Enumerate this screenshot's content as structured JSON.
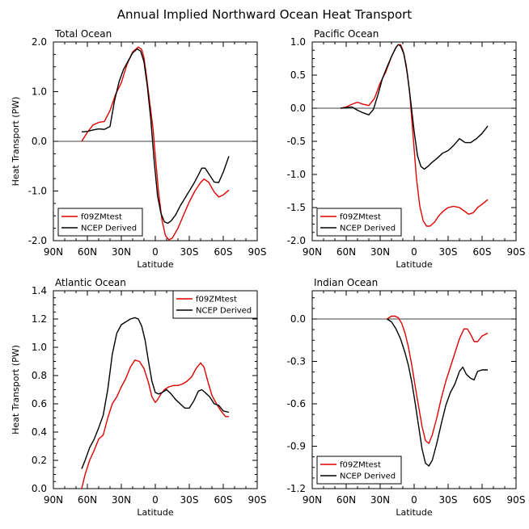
{
  "figure": {
    "title": "Annual Implied Northward Ocean Heat Transport"
  },
  "chart_data": [
    {
      "type": "line",
      "title": "Total Ocean",
      "xlabel": "Latitude",
      "ylabel": "Heat Transport (PW)",
      "xlim": [
        90,
        -90
      ],
      "ylim": [
        -2.0,
        2.0
      ],
      "x_ticks": [
        90,
        60,
        30,
        0,
        -30,
        -60,
        -90
      ],
      "x_tick_labels": [
        "90N",
        "60N",
        "30N",
        "0",
        "30S",
        "60S",
        "90S"
      ],
      "y_ticks": [
        -2.0,
        -1.0,
        0.0,
        1.0,
        2.0
      ],
      "y_tick_labels": [
        "-2.0",
        "-1.0",
        "0.0",
        "1.0",
        "2.0"
      ],
      "legend_position": "bottom-left",
      "series": [
        {
          "name": "f09ZMtest",
          "color": "#e00000",
          "x": [
            65,
            60,
            55,
            50,
            45,
            40,
            35,
            30,
            25,
            20,
            15,
            12,
            10,
            8,
            5,
            2,
            0,
            -3,
            -6,
            -9,
            -12,
            -15,
            -20,
            -25,
            -30,
            -35,
            -40,
            -43,
            -47,
            -52,
            -56,
            -60,
            -65
          ],
          "y": [
            0.0,
            0.18,
            0.33,
            0.38,
            0.4,
            0.62,
            0.95,
            1.18,
            1.55,
            1.8,
            1.9,
            1.85,
            1.68,
            1.35,
            0.8,
            0.25,
            -0.3,
            -1.05,
            -1.6,
            -1.9,
            -1.98,
            -1.95,
            -1.75,
            -1.48,
            -1.22,
            -1.0,
            -0.83,
            -0.76,
            -0.82,
            -1.02,
            -1.12,
            -1.08,
            -0.98
          ]
        },
        {
          "name": "NCEP Derived",
          "color": "#000000",
          "x": [
            65,
            60,
            55,
            50,
            45,
            40,
            36,
            32,
            28,
            24,
            20,
            16,
            13,
            10,
            7,
            4,
            1,
            -2,
            -5,
            -8,
            -11,
            -14,
            -18,
            -22,
            -26,
            -30,
            -34,
            -38,
            -41,
            -44,
            -48,
            -52,
            -56,
            -60,
            -65
          ],
          "y": [
            0.19,
            0.2,
            0.23,
            0.25,
            0.24,
            0.3,
            0.82,
            1.2,
            1.45,
            1.62,
            1.78,
            1.86,
            1.82,
            1.6,
            1.1,
            0.45,
            -0.4,
            -1.1,
            -1.45,
            -1.62,
            -1.65,
            -1.6,
            -1.48,
            -1.3,
            -1.15,
            -1.0,
            -0.85,
            -0.68,
            -0.54,
            -0.54,
            -0.68,
            -0.82,
            -0.83,
            -0.62,
            -0.3
          ]
        }
      ]
    },
    {
      "type": "line",
      "title": "Pacific Ocean",
      "xlabel": "Latitude",
      "ylabel": "",
      "xlim": [
        90,
        -90
      ],
      "ylim": [
        -2.0,
        1.0
      ],
      "x_ticks": [
        90,
        60,
        30,
        0,
        -30,
        -60,
        -90
      ],
      "x_tick_labels": [
        "90N",
        "60N",
        "30N",
        "0",
        "30S",
        "60S",
        "90S"
      ],
      "y_ticks": [
        -2.0,
        -1.5,
        -1.0,
        -0.5,
        0.0,
        0.5,
        1.0
      ],
      "y_tick_labels": [
        "-2.0",
        "-1.5",
        "-1.0",
        "-0.5",
        "0.0",
        "0.5",
        "1.0"
      ],
      "legend_position": "bottom-left",
      "series": [
        {
          "name": "f09ZMtest",
          "color": "#e00000",
          "x": [
            65,
            60,
            55,
            50,
            45,
            40,
            35,
            30,
            25,
            20,
            16,
            14,
            12,
            10,
            7,
            4,
            1,
            -2,
            -5,
            -8,
            -11,
            -14,
            -18,
            -22,
            -26,
            -30,
            -35,
            -40,
            -45,
            -48,
            -52,
            -56,
            -60,
            -65
          ],
          "y": [
            0.0,
            0.02,
            0.06,
            0.09,
            0.06,
            0.04,
            0.15,
            0.38,
            0.55,
            0.78,
            0.92,
            0.96,
            0.96,
            0.88,
            0.65,
            0.25,
            -0.4,
            -1.05,
            -1.48,
            -1.7,
            -1.78,
            -1.78,
            -1.72,
            -1.62,
            -1.55,
            -1.5,
            -1.48,
            -1.5,
            -1.56,
            -1.6,
            -1.58,
            -1.5,
            -1.45,
            -1.38
          ]
        },
        {
          "name": "NCEP Derived",
          "color": "#000000",
          "x": [
            65,
            60,
            55,
            50,
            45,
            40,
            36,
            32,
            28,
            24,
            20,
            16,
            14,
            12,
            9,
            6,
            3,
            0,
            -3,
            -6,
            -9,
            -12,
            -15,
            -20,
            -25,
            -30,
            -35,
            -40,
            -45,
            -50,
            -55,
            -60,
            -65
          ],
          "y": [
            0.0,
            0.01,
            0.02,
            -0.03,
            -0.07,
            -0.1,
            -0.02,
            0.2,
            0.45,
            0.62,
            0.78,
            0.92,
            0.96,
            0.94,
            0.82,
            0.52,
            0.1,
            -0.35,
            -0.72,
            -0.88,
            -0.92,
            -0.88,
            -0.83,
            -0.76,
            -0.68,
            -0.64,
            -0.56,
            -0.46,
            -0.52,
            -0.52,
            -0.46,
            -0.38,
            -0.27
          ]
        }
      ]
    },
    {
      "type": "line",
      "title": "Atlantic Ocean",
      "xlabel": "Latitude",
      "ylabel": "Heat Transport (PW)",
      "xlim": [
        90,
        -90
      ],
      "ylim": [
        0.0,
        1.4
      ],
      "x_ticks": [
        90,
        60,
        30,
        0,
        -30,
        -60,
        -90
      ],
      "x_tick_labels": [
        "90N",
        "60N",
        "30N",
        "0",
        "30S",
        "60S",
        "90S"
      ],
      "y_ticks": [
        0.0,
        0.2,
        0.4,
        0.6,
        0.8,
        1.0,
        1.2,
        1.4
      ],
      "y_tick_labels": [
        "0.0",
        "0.2",
        "0.4",
        "0.6",
        "0.8",
        "1.0",
        "1.2",
        "1.4"
      ],
      "legend_position": "top-right",
      "series": [
        {
          "name": "f09ZMtest",
          "color": "#e00000",
          "x": [
            65,
            62,
            58,
            54,
            50,
            46,
            42,
            38,
            34,
            30,
            26,
            22,
            18,
            14,
            10,
            6,
            3,
            0,
            -2,
            -5,
            -8,
            -12,
            -16,
            -20,
            -24,
            -28,
            -32,
            -36,
            -40,
            -43,
            -46,
            -50,
            -54,
            -58,
            -62,
            -65
          ],
          "y": [
            0.0,
            0.1,
            0.2,
            0.27,
            0.35,
            0.38,
            0.5,
            0.6,
            0.65,
            0.72,
            0.78,
            0.86,
            0.91,
            0.9,
            0.85,
            0.75,
            0.65,
            0.61,
            0.63,
            0.67,
            0.7,
            0.72,
            0.73,
            0.73,
            0.74,
            0.76,
            0.79,
            0.85,
            0.89,
            0.86,
            0.77,
            0.66,
            0.6,
            0.55,
            0.51,
            0.51
          ]
        },
        {
          "name": "NCEP Derived",
          "color": "#000000",
          "x": [
            65,
            62,
            58,
            54,
            50,
            46,
            42,
            38,
            34,
            30,
            26,
            22,
            18,
            15,
            12,
            9,
            6,
            3,
            0,
            -3,
            -6,
            -10,
            -14,
            -18,
            -22,
            -26,
            -30,
            -34,
            -38,
            -41,
            -44,
            -48,
            -52,
            -56,
            -60,
            -65
          ],
          "y": [
            0.14,
            0.2,
            0.29,
            0.35,
            0.43,
            0.52,
            0.7,
            0.95,
            1.1,
            1.16,
            1.18,
            1.2,
            1.21,
            1.2,
            1.15,
            1.05,
            0.9,
            0.76,
            0.68,
            0.67,
            0.68,
            0.7,
            0.67,
            0.63,
            0.6,
            0.57,
            0.57,
            0.62,
            0.69,
            0.7,
            0.68,
            0.65,
            0.6,
            0.59,
            0.55,
            0.54
          ]
        }
      ]
    },
    {
      "type": "line",
      "title": "Indian Ocean",
      "xlabel": "Latitude",
      "ylabel": "",
      "xlim": [
        90,
        -90
      ],
      "ylim": [
        -1.2,
        0.2
      ],
      "x_ticks": [
        90,
        60,
        30,
        0,
        -30,
        -60,
        -90
      ],
      "x_tick_labels": [
        "90N",
        "60N",
        "30N",
        "0",
        "30S",
        "60S",
        "90S"
      ],
      "y_ticks": [
        -1.2,
        -0.9,
        -0.6,
        -0.3,
        0.0
      ],
      "y_tick_labels": [
        "-1.2",
        "-0.9",
        "-0.6",
        "-0.3",
        "0.0"
      ],
      "legend_position": "bottom-left",
      "series": [
        {
          "name": "f09ZMtest",
          "color": "#e00000",
          "x": [
            24,
            20,
            17,
            14,
            11,
            8,
            5,
            2,
            -1,
            -4,
            -7,
            -10,
            -13,
            -16,
            -20,
            -24,
            -28,
            -32,
            -36,
            -40,
            -44,
            -47,
            -50,
            -53,
            -56,
            -60,
            -65
          ],
          "y": [
            0.0,
            0.02,
            0.02,
            0.01,
            -0.03,
            -0.1,
            -0.2,
            -0.33,
            -0.48,
            -0.62,
            -0.76,
            -0.86,
            -0.88,
            -0.82,
            -0.7,
            -0.56,
            -0.44,
            -0.34,
            -0.24,
            -0.14,
            -0.07,
            -0.07,
            -0.11,
            -0.16,
            -0.16,
            -0.12,
            -0.1
          ]
        },
        {
          "name": "NCEP Derived",
          "color": "#000000",
          "x": [
            24,
            20,
            16,
            12,
            8,
            5,
            2,
            -1,
            -4,
            -7,
            -10,
            -13,
            -16,
            -20,
            -24,
            -28,
            -32,
            -36,
            -40,
            -43,
            -46,
            -50,
            -53,
            -56,
            -60,
            -65
          ],
          "y": [
            0.0,
            -0.02,
            -0.07,
            -0.14,
            -0.24,
            -0.33,
            -0.45,
            -0.6,
            -0.76,
            -0.92,
            -1.02,
            -1.04,
            -1.0,
            -0.88,
            -0.74,
            -0.61,
            -0.52,
            -0.46,
            -0.37,
            -0.34,
            -0.39,
            -0.42,
            -0.43,
            -0.37,
            -0.36,
            -0.36
          ]
        }
      ]
    }
  ]
}
